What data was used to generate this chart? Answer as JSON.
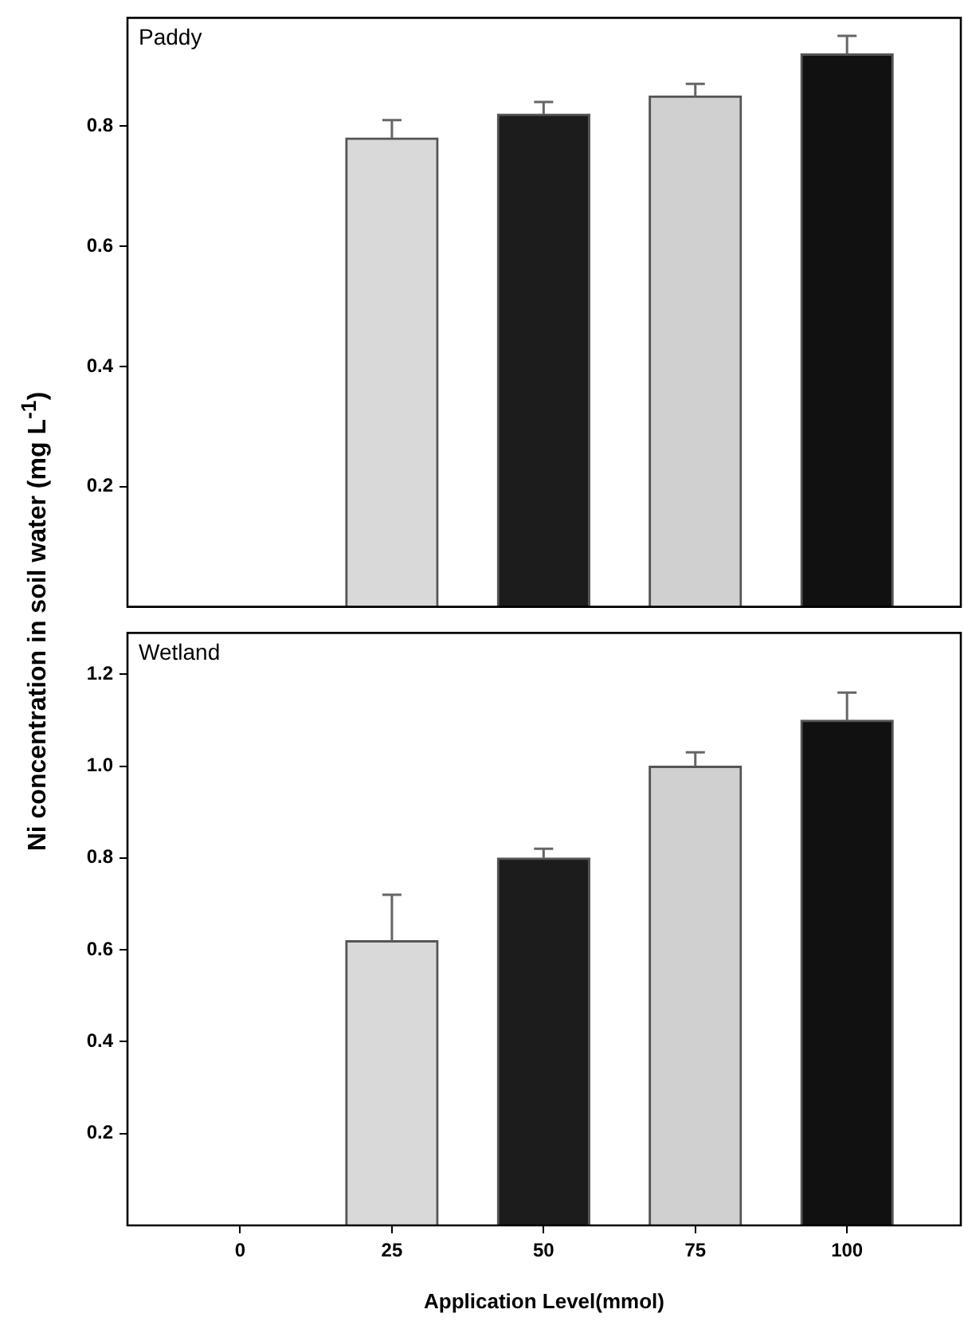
{
  "chart_data": [
    {
      "type": "bar",
      "ylabel": "Ni concentration in soil water (mg L$^{-1}$)",
      "annotations": [
        "Paddy"
      ],
      "categories": [
        "0",
        "25",
        "50",
        "75",
        "100"
      ],
      "values": [
        null,
        0.78,
        0.82,
        0.85,
        0.92
      ],
      "errors": [
        null,
        [
          0.78,
          0.81
        ],
        [
          0.82,
          0.84
        ],
        [
          0.85,
          0.87
        ],
        [
          0.92,
          0.95
        ]
      ],
      "colors": [
        "#d9d9d9",
        "#d9d9d9",
        "#1c1c1c",
        "#d0d0d0",
        "#111111"
      ],
      "ylim": [
        0,
        0.98
      ],
      "yticks": [
        0.2,
        0.4,
        0.6,
        0.8
      ],
      "grid": false,
      "legend": false,
      "tick_labels": "y"
    },
    {
      "type": "bar",
      "xlabel": "Application Level(mmol)",
      "annotations": [
        "Wetland"
      ],
      "categories": [
        "0",
        "25",
        "50",
        "75",
        "100"
      ],
      "values": [
        null,
        0.62,
        0.8,
        1.0,
        1.1
      ],
      "errors": [
        null,
        [
          0.62,
          0.72
        ],
        [
          0.8,
          0.82
        ],
        [
          1.0,
          1.03
        ],
        [
          1.1,
          1.16
        ]
      ],
      "colors": [
        "#d9d9d9",
        "#d9d9d9",
        "#1c1c1c",
        "#d0d0d0",
        "#111111"
      ],
      "ylim": [
        0,
        1.29
      ],
      "yticks": [
        0.2,
        0.4,
        0.6,
        0.8,
        {
          "value": 1,
          "label": "1.0"
        },
        1.2
      ],
      "grid": false,
      "legend": false
    }
  ]
}
